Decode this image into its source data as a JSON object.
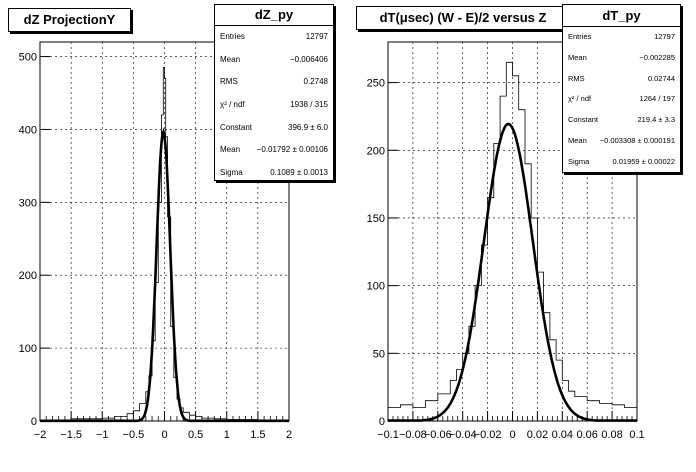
{
  "panels": [
    {
      "title": "dZ ProjectionY",
      "stats": {
        "name": "dZ_py",
        "rows": [
          {
            "label": "Entries",
            "value": "12797"
          },
          {
            "label": "Mean",
            "value": "−0.006406"
          },
          {
            "label": "RMS",
            "value": "0.2748"
          },
          {
            "label": "χ² / ndf",
            "value": "1938 / 315"
          },
          {
            "label": "Constant",
            "value": "396.9 ± 6.0"
          },
          {
            "label": "Mean",
            "value": "−0.01792 ± 0.00106"
          },
          {
            "label": "Sigma",
            "value": "0.1089 ± 0.0013"
          }
        ]
      }
    },
    {
      "title": "dT(μsec) (W - E)/2 versus Z",
      "stats": {
        "name": "dT_py",
        "rows": [
          {
            "label": "Entries",
            "value": "12797"
          },
          {
            "label": "Mean",
            "value": "−0.002285"
          },
          {
            "label": "RMS",
            "value": "0.02744"
          },
          {
            "label": "χ² / ndf",
            "value": "1264 / 197"
          },
          {
            "label": "Constant",
            "value": "219.4 ± 3.3"
          },
          {
            "label": "Mean",
            "value": "−0.003308 ± 0.000191"
          },
          {
            "label": "Sigma",
            "value": "0.01959 ± 0.00022"
          }
        ]
      }
    }
  ],
  "chart_data": [
    {
      "type": "line",
      "title": "dZ ProjectionY",
      "xlim": [
        -2,
        2
      ],
      "ylim": [
        0,
        520
      ],
      "xticks": [
        "−2",
        "−1.5",
        "−1",
        "−0.5",
        "0",
        "0.5",
        "1",
        "1.5",
        "2"
      ],
      "xtick_values": [
        -2,
        -1.5,
        -1,
        -0.5,
        0,
        0.5,
        1,
        1.5,
        2
      ],
      "yticks": [
        "0",
        "100",
        "200",
        "300",
        "400",
        "500"
      ],
      "ytick_values": [
        0,
        100,
        200,
        300,
        400,
        500
      ],
      "grid": true,
      "series": [
        {
          "kind": "histogram",
          "x": [
            -2.0,
            -1.5,
            -1.0,
            -0.8,
            -0.6,
            -0.5,
            -0.4,
            -0.3,
            -0.25,
            -0.2,
            -0.15,
            -0.1,
            -0.05,
            -0.02,
            0.0,
            0.02,
            0.05,
            0.1,
            0.15,
            0.2,
            0.25,
            0.3,
            0.4,
            0.5,
            0.6,
            0.8,
            1.0,
            1.5,
            2.0
          ],
          "y": [
            1,
            3,
            4,
            6,
            10,
            14,
            24,
            40,
            62,
            110,
            190,
            300,
            420,
            485,
            470,
            390,
            280,
            130,
            60,
            30,
            18,
            12,
            8,
            6,
            4,
            3,
            2,
            1,
            1
          ]
        },
        {
          "kind": "gaussian-fit",
          "constant": 396.9,
          "mean": -0.01792,
          "sigma": 0.1089
        }
      ]
    },
    {
      "type": "line",
      "title": "dT(μsec) (W - E)/2 versus Z",
      "xlim": [
        -0.1,
        0.1
      ],
      "ylim": [
        0,
        280
      ],
      "xticks": [
        "−0.1",
        "−0.08",
        "−0.06",
        "−0.04",
        "−0.02",
        "0",
        "0.02",
        "0.04",
        "0.06",
        "0.08",
        "0.1"
      ],
      "xtick_values": [
        -0.1,
        -0.08,
        -0.06,
        -0.04,
        -0.02,
        0,
        0.02,
        0.04,
        0.06,
        0.08,
        0.1
      ],
      "yticks": [
        "0",
        "50",
        "100",
        "150",
        "200",
        "250"
      ],
      "ytick_values": [
        0,
        50,
        100,
        150,
        200,
        250
      ],
      "grid": true,
      "series": [
        {
          "kind": "histogram",
          "x": [
            -0.1,
            -0.09,
            -0.08,
            -0.07,
            -0.06,
            -0.05,
            -0.045,
            -0.04,
            -0.035,
            -0.03,
            -0.025,
            -0.02,
            -0.015,
            -0.01,
            -0.005,
            0.0,
            0.005,
            0.01,
            0.015,
            0.02,
            0.025,
            0.03,
            0.035,
            0.04,
            0.045,
            0.05,
            0.06,
            0.07,
            0.08,
            0.09,
            0.1
          ],
          "y": [
            10,
            12,
            10,
            15,
            20,
            30,
            38,
            50,
            70,
            100,
            130,
            165,
            205,
            240,
            265,
            255,
            230,
            190,
            150,
            110,
            80,
            60,
            45,
            30,
            22,
            18,
            15,
            13,
            12,
            10,
            8
          ]
        },
        {
          "kind": "gaussian-fit",
          "constant": 219.4,
          "mean": -0.003308,
          "sigma": 0.01959
        }
      ]
    }
  ]
}
